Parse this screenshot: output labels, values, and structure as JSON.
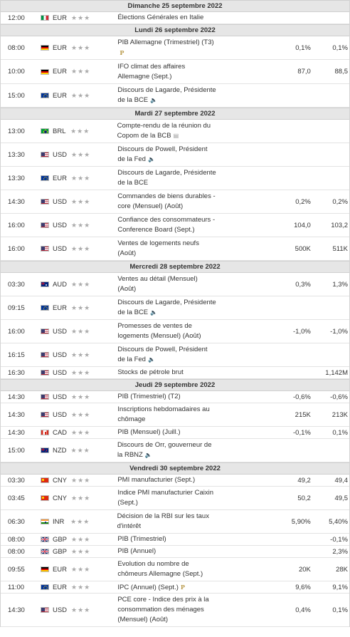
{
  "days": [
    {
      "date": "Dimanche 25 septembre 2022",
      "events": [
        {
          "time": "12:00",
          "flag": "it",
          "currency": "EUR",
          "event_lines": [
            "Élections Générales en Italie"
          ],
          "icon": "",
          "actual": "",
          "forecast": "",
          "previous": "",
          "h": 17
        }
      ]
    },
    {
      "date": "Lundi 26 septembre 2022",
      "events": [
        {
          "time": "08:00",
          "flag": "de",
          "currency": "EUR",
          "event_lines": [
            "PIB Allemagne (Trimestriel) (T3)"
          ],
          "icon": "preliminary-icon",
          "icon_glyph": "P",
          "actual": "",
          "forecast": "0,1%",
          "previous": "0,1%",
          "h": 33
        },
        {
          "time": "10:00",
          "flag": "de",
          "currency": "EUR",
          "event_lines": [
            "IFO climat des affaires",
            "Allemagne (Sept.)"
          ],
          "icon": "",
          "actual": "",
          "forecast": "87,0",
          "previous": "88,5",
          "h": 34
        },
        {
          "time": "15:00",
          "flag": "eu",
          "currency": "EUR",
          "event_lines": [
            "Discours de Lagarde, Présidente",
            "de la BCE"
          ],
          "icon": "speaker-icon",
          "icon_glyph": "🔈",
          "actual": "",
          "forecast": "",
          "previous": "",
          "h": 33
        }
      ]
    },
    {
      "date": "Mardi 27 septembre 2022",
      "events": [
        {
          "time": "13:00",
          "flag": "br",
          "currency": "BRL",
          "event_lines": [
            "Compte-rendu de la réunion du",
            "Copom de la BCB"
          ],
          "icon": "document-icon",
          "icon_glyph": "▤",
          "actual": "",
          "forecast": "",
          "previous": "",
          "h": 33
        },
        {
          "time": "13:30",
          "flag": "us",
          "currency": "USD",
          "event_lines": [
            "Discours de Powell, Président",
            "de la Fed"
          ],
          "icon": "speaker-icon",
          "icon_glyph": "🔈",
          "actual": "",
          "forecast": "",
          "previous": "",
          "h": 33
        },
        {
          "time": "13:30",
          "flag": "eu",
          "currency": "EUR",
          "event_lines": [
            "Discours de Lagarde, Présidente",
            "de la BCE"
          ],
          "icon": "",
          "actual": "",
          "forecast": "",
          "previous": "",
          "h": 33
        },
        {
          "time": "14:30",
          "flag": "us",
          "currency": "USD",
          "event_lines": [
            "Commandes de biens durables -",
            "core (Mensuel) (Août)"
          ],
          "icon": "",
          "actual": "",
          "forecast": "0,2%",
          "previous": "0,2%",
          "h": 33
        },
        {
          "time": "16:00",
          "flag": "us",
          "currency": "USD",
          "event_lines": [
            "Confiance des consommateurs -",
            "Conference Board (Sept.)"
          ],
          "icon": "",
          "actual": "",
          "forecast": "104,0",
          "previous": "103,2",
          "h": 33
        },
        {
          "time": "16:00",
          "flag": "us",
          "currency": "USD",
          "event_lines": [
            "Ventes de logements neufs",
            "(Août)"
          ],
          "icon": "",
          "actual": "",
          "forecast": "500K",
          "previous": "511K",
          "h": 33
        }
      ]
    },
    {
      "date": "Mercredi 28 septembre 2022",
      "events": [
        {
          "time": "03:30",
          "flag": "au",
          "currency": "AUD",
          "event_lines": [
            "Ventes au détail (Mensuel)",
            "(Août)"
          ],
          "icon": "",
          "actual": "",
          "forecast": "0,3%",
          "previous": "1,3%",
          "h": 33
        },
        {
          "time": "09:15",
          "flag": "eu",
          "currency": "EUR",
          "event_lines": [
            "Discours de Lagarde, Présidente",
            "de la BCE"
          ],
          "icon": "speaker-icon",
          "icon_glyph": "🔈",
          "actual": "",
          "forecast": "",
          "previous": "",
          "h": 33
        },
        {
          "time": "16:00",
          "flag": "us",
          "currency": "USD",
          "event_lines": [
            "Promesses de ventes de",
            "logements (Mensuel) (Août)"
          ],
          "icon": "",
          "actual": "",
          "forecast": "-1,0%",
          "previous": "-1,0%",
          "h": 33
        },
        {
          "time": "16:15",
          "flag": "us",
          "currency": "USD",
          "event_lines": [
            "Discours de Powell, Président",
            "de la Fed"
          ],
          "icon": "speaker-icon",
          "icon_glyph": "🔈",
          "actual": "",
          "forecast": "",
          "previous": "",
          "h": 33
        },
        {
          "time": "16:30",
          "flag": "us",
          "currency": "USD",
          "event_lines": [
            "Stocks de pétrole brut"
          ],
          "icon": "",
          "actual": "",
          "forecast": "",
          "previous": "1,142M",
          "h": 17
        }
      ]
    },
    {
      "date": "Jeudi 29 septembre 2022",
      "events": [
        {
          "time": "14:30",
          "flag": "us",
          "currency": "USD",
          "event_lines": [
            "PIB (Trimestriel) (T2)"
          ],
          "icon": "",
          "actual": "",
          "forecast": "-0,6%",
          "previous": "-0,6%",
          "h": 17
        },
        {
          "time": "14:30",
          "flag": "us",
          "currency": "USD",
          "event_lines": [
            "Inscriptions hebdomadaires au",
            "chômage"
          ],
          "icon": "",
          "actual": "",
          "forecast": "215K",
          "previous": "213K",
          "h": 33
        },
        {
          "time": "14:30",
          "flag": "ca",
          "currency": "CAD",
          "event_lines": [
            "PIB (Mensuel) (Juill.)"
          ],
          "icon": "",
          "actual": "",
          "forecast": "-0,1%",
          "previous": "0,1%",
          "h": 17
        },
        {
          "time": "15:00",
          "flag": "nz",
          "currency": "NZD",
          "event_lines": [
            "Discours de Orr, gouverneur de",
            "la RBNZ"
          ],
          "icon": "speaker-icon",
          "icon_glyph": "🔈",
          "actual": "",
          "forecast": "",
          "previous": "",
          "h": 33
        }
      ]
    },
    {
      "date": "Vendredi 30 septembre 2022",
      "events": [
        {
          "time": "03:30",
          "flag": "cn",
          "currency": "CNY",
          "event_lines": [
            "PMI manufacturier (Sept.)"
          ],
          "icon": "",
          "actual": "",
          "forecast": "49,2",
          "previous": "49,4",
          "h": 17
        },
        {
          "time": "03:45",
          "flag": "cn",
          "currency": "CNY",
          "event_lines": [
            "Indice PMI manufacturier Caixin",
            "(Sept.)"
          ],
          "icon": "",
          "actual": "",
          "forecast": "50,2",
          "previous": "49,5",
          "h": 33
        },
        {
          "time": "06:30",
          "flag": "in",
          "currency": "INR",
          "event_lines": [
            "Décision de la RBI sur les taux",
            "d'intérêt"
          ],
          "icon": "",
          "actual": "",
          "forecast": "5,90%",
          "previous": "5,40%",
          "h": 33
        },
        {
          "time": "08:00",
          "flag": "gb",
          "currency": "GBP",
          "event_lines": [
            "PIB (Trimestriel)"
          ],
          "icon": "",
          "actual": "",
          "forecast": "",
          "previous": "-0,1%",
          "h": 17
        },
        {
          "time": "08:00",
          "flag": "gb",
          "currency": "GBP",
          "event_lines": [
            "PIB (Annuel)"
          ],
          "icon": "",
          "actual": "",
          "forecast": "",
          "previous": "2,3%",
          "h": 17
        },
        {
          "time": "09:55",
          "flag": "de",
          "currency": "EUR",
          "event_lines": [
            "Evolution du nombre de",
            "chômeurs Allemagne (Sept.)"
          ],
          "icon": "",
          "actual": "",
          "forecast": "20K",
          "previous": "28K",
          "h": 33
        },
        {
          "time": "11:00",
          "flag": "eu",
          "currency": "EUR",
          "event_lines": [
            "IPC (Annuel) (Sept.)"
          ],
          "icon": "preliminary-icon",
          "icon_glyph": "P",
          "actual": "",
          "forecast": "9,6%",
          "previous": "9,1%",
          "h": 17
        },
        {
          "time": "14:30",
          "flag": "us",
          "currency": "USD",
          "event_lines": [
            "PCE core - Indice des prix à la",
            "consommation des ménages",
            "(Mensuel) (Août)"
          ],
          "icon": "",
          "actual": "",
          "forecast": "0,4%",
          "previous": "0,1%",
          "h": 47
        }
      ]
    }
  ],
  "importance_glyph": "★★★",
  "importance_color": "#aaaaaa"
}
